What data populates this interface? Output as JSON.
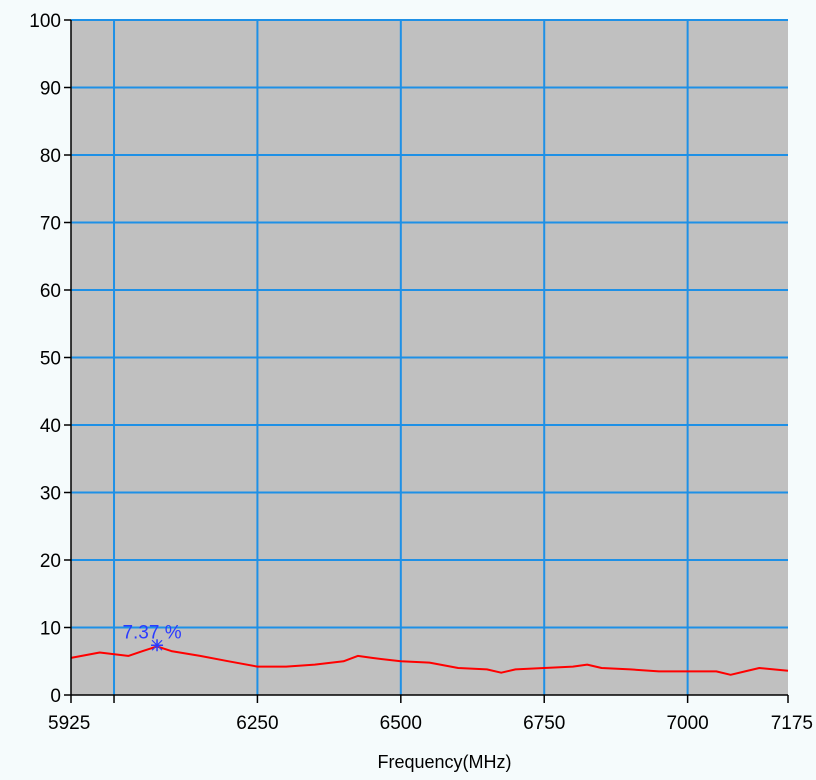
{
  "chart_data": {
    "type": "line",
    "title": "",
    "xlabel": "Frequency(MHz)",
    "ylabel": "",
    "xlim": [
      5925,
      7175
    ],
    "ylim": [
      0,
      100
    ],
    "x_ticks": [
      5925,
      6000,
      6250,
      6500,
      6750,
      7000,
      7175
    ],
    "x_tick_labels": [
      "5925",
      "",
      "6250",
      "6500",
      "6750",
      "7000",
      "7175"
    ],
    "y_ticks": [
      0,
      10,
      20,
      30,
      40,
      50,
      60,
      70,
      80,
      90,
      100
    ],
    "x_grid": [
      6000,
      6250,
      6500,
      6750,
      7000
    ],
    "grid": true,
    "colors": {
      "plot_background": "#C0C0C0",
      "grid": "#1E90E6",
      "series": "#FF0000",
      "marker": "#2B3BFF",
      "page_background": "#F5FBFC"
    },
    "series": [
      {
        "x": [
          5925,
          5975,
          6025,
          6050,
          6075,
          6100,
          6150,
          6200,
          6250,
          6300,
          6350,
          6400,
          6425,
          6450,
          6500,
          6550,
          6600,
          6650,
          6675,
          6700,
          6750,
          6800,
          6825,
          6850,
          6900,
          6950,
          7000,
          7050,
          7075,
          7100,
          7125,
          7150,
          7175
        ],
        "y": [
          5.5,
          6.3,
          5.8,
          6.5,
          7.2,
          6.5,
          5.8,
          5.0,
          4.2,
          4.2,
          4.5,
          5.0,
          5.8,
          5.5,
          5.0,
          4.8,
          4.0,
          3.8,
          3.3,
          3.8,
          4.0,
          4.2,
          4.5,
          4.0,
          3.8,
          3.5,
          3.5,
          3.5,
          3.0,
          3.5,
          4.0,
          3.8,
          3.6
        ]
      }
    ],
    "marker": {
      "x": 6075,
      "y": 7.37,
      "label": "7.37 %"
    }
  }
}
